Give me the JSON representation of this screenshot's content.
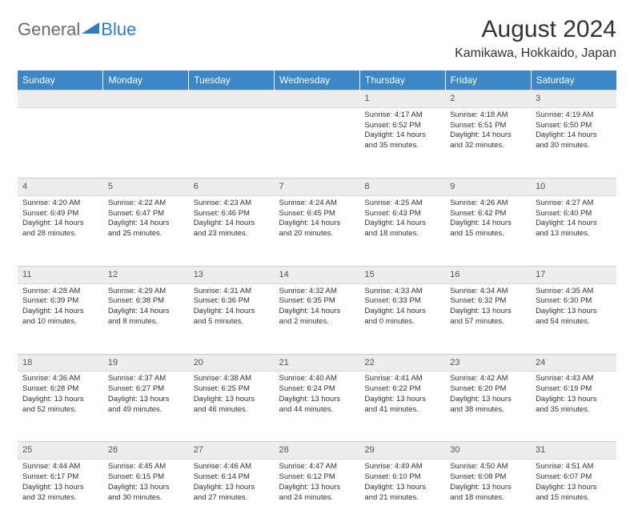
{
  "logo": {
    "text1": "General",
    "text2": "Blue"
  },
  "header": {
    "month_title": "August 2024",
    "location": "Kamikawa, Hokkaido, Japan"
  },
  "colors": {
    "header_bg": "#3b87c8",
    "header_text": "#ffffff",
    "daynum_bg": "#ededed",
    "border": "#d9d9d9",
    "logo_gray": "#6b6b6b",
    "logo_blue": "#2d7dc0"
  },
  "weekdays": [
    "Sunday",
    "Monday",
    "Tuesday",
    "Wednesday",
    "Thursday",
    "Friday",
    "Saturday"
  ],
  "weeks": [
    [
      null,
      null,
      null,
      null,
      {
        "n": "1",
        "sr": "4:17 AM",
        "ss": "6:52 PM",
        "dl": "14 hours and 35 minutes."
      },
      {
        "n": "2",
        "sr": "4:18 AM",
        "ss": "6:51 PM",
        "dl": "14 hours and 32 minutes."
      },
      {
        "n": "3",
        "sr": "4:19 AM",
        "ss": "6:50 PM",
        "dl": "14 hours and 30 minutes."
      }
    ],
    [
      {
        "n": "4",
        "sr": "4:20 AM",
        "ss": "6:49 PM",
        "dl": "14 hours and 28 minutes."
      },
      {
        "n": "5",
        "sr": "4:22 AM",
        "ss": "6:47 PM",
        "dl": "14 hours and 25 minutes."
      },
      {
        "n": "6",
        "sr": "4:23 AM",
        "ss": "6:46 PM",
        "dl": "14 hours and 23 minutes."
      },
      {
        "n": "7",
        "sr": "4:24 AM",
        "ss": "6:45 PM",
        "dl": "14 hours and 20 minutes."
      },
      {
        "n": "8",
        "sr": "4:25 AM",
        "ss": "6:43 PM",
        "dl": "14 hours and 18 minutes."
      },
      {
        "n": "9",
        "sr": "4:26 AM",
        "ss": "6:42 PM",
        "dl": "14 hours and 15 minutes."
      },
      {
        "n": "10",
        "sr": "4:27 AM",
        "ss": "6:40 PM",
        "dl": "14 hours and 13 minutes."
      }
    ],
    [
      {
        "n": "11",
        "sr": "4:28 AM",
        "ss": "6:39 PM",
        "dl": "14 hours and 10 minutes."
      },
      {
        "n": "12",
        "sr": "4:29 AM",
        "ss": "6:38 PM",
        "dl": "14 hours and 8 minutes."
      },
      {
        "n": "13",
        "sr": "4:31 AM",
        "ss": "6:36 PM",
        "dl": "14 hours and 5 minutes."
      },
      {
        "n": "14",
        "sr": "4:32 AM",
        "ss": "6:35 PM",
        "dl": "14 hours and 2 minutes."
      },
      {
        "n": "15",
        "sr": "4:33 AM",
        "ss": "6:33 PM",
        "dl": "14 hours and 0 minutes."
      },
      {
        "n": "16",
        "sr": "4:34 AM",
        "ss": "6:32 PM",
        "dl": "13 hours and 57 minutes."
      },
      {
        "n": "17",
        "sr": "4:35 AM",
        "ss": "6:30 PM",
        "dl": "13 hours and 54 minutes."
      }
    ],
    [
      {
        "n": "18",
        "sr": "4:36 AM",
        "ss": "6:28 PM",
        "dl": "13 hours and 52 minutes."
      },
      {
        "n": "19",
        "sr": "4:37 AM",
        "ss": "6:27 PM",
        "dl": "13 hours and 49 minutes."
      },
      {
        "n": "20",
        "sr": "4:38 AM",
        "ss": "6:25 PM",
        "dl": "13 hours and 46 minutes."
      },
      {
        "n": "21",
        "sr": "4:40 AM",
        "ss": "6:24 PM",
        "dl": "13 hours and 44 minutes."
      },
      {
        "n": "22",
        "sr": "4:41 AM",
        "ss": "6:22 PM",
        "dl": "13 hours and 41 minutes."
      },
      {
        "n": "23",
        "sr": "4:42 AM",
        "ss": "6:20 PM",
        "dl": "13 hours and 38 minutes."
      },
      {
        "n": "24",
        "sr": "4:43 AM",
        "ss": "6:19 PM",
        "dl": "13 hours and 35 minutes."
      }
    ],
    [
      {
        "n": "25",
        "sr": "4:44 AM",
        "ss": "6:17 PM",
        "dl": "13 hours and 32 minutes."
      },
      {
        "n": "26",
        "sr": "4:45 AM",
        "ss": "6:15 PM",
        "dl": "13 hours and 30 minutes."
      },
      {
        "n": "27",
        "sr": "4:46 AM",
        "ss": "6:14 PM",
        "dl": "13 hours and 27 minutes."
      },
      {
        "n": "28",
        "sr": "4:47 AM",
        "ss": "6:12 PM",
        "dl": "13 hours and 24 minutes."
      },
      {
        "n": "29",
        "sr": "4:49 AM",
        "ss": "6:10 PM",
        "dl": "13 hours and 21 minutes."
      },
      {
        "n": "30",
        "sr": "4:50 AM",
        "ss": "6:08 PM",
        "dl": "13 hours and 18 minutes."
      },
      {
        "n": "31",
        "sr": "4:51 AM",
        "ss": "6:07 PM",
        "dl": "13 hours and 15 minutes."
      }
    ]
  ],
  "labels": {
    "sunrise": "Sunrise:",
    "sunset": "Sunset:",
    "daylight": "Daylight:"
  }
}
